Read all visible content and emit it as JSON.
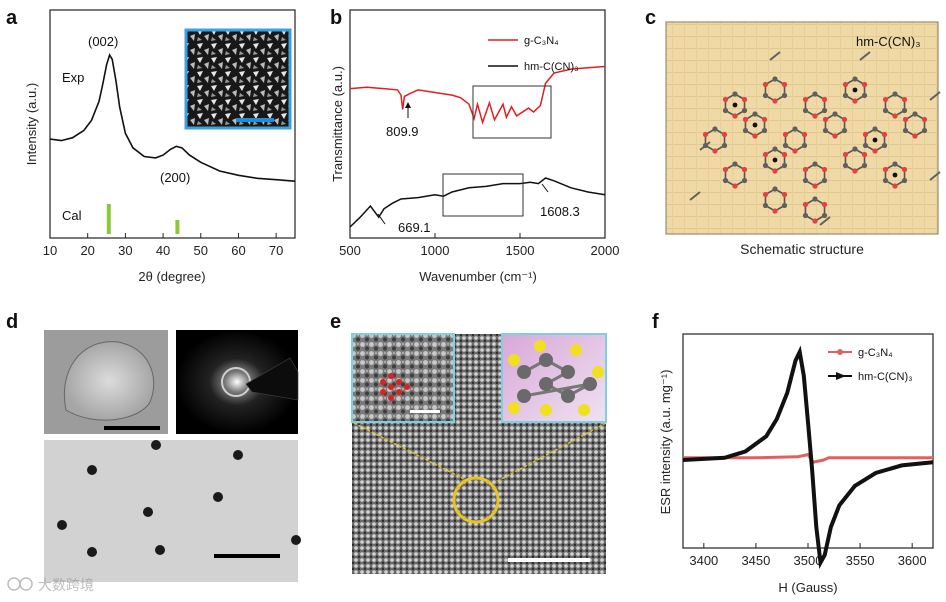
{
  "panels": {
    "a": "a",
    "b": "b",
    "c": "c",
    "d": "d",
    "e": "e",
    "f": "f"
  },
  "chart_data": [
    {
      "id": "a",
      "type": "line",
      "xlabel": "2θ (degree)",
      "ylabel": "Intensity (a.u.)",
      "xlim": [
        10,
        75
      ],
      "x_ticks": [
        "10",
        "20",
        "30",
        "40",
        "50",
        "60",
        "70"
      ],
      "series": [
        {
          "name": "Exp",
          "x": [
            10,
            13,
            16,
            19,
            21,
            23,
            24,
            25,
            25.8,
            26.5,
            27.5,
            28.5,
            30,
            32,
            35,
            38,
            40,
            42,
            43.5,
            45,
            47,
            50,
            55,
            60,
            65,
            70,
            75
          ],
          "y": [
            0.42,
            0.41,
            0.43,
            0.48,
            0.55,
            0.68,
            0.8,
            0.93,
            1.0,
            0.97,
            0.82,
            0.64,
            0.46,
            0.36,
            0.3,
            0.29,
            0.31,
            0.35,
            0.37,
            0.36,
            0.31,
            0.26,
            0.2,
            0.17,
            0.15,
            0.14,
            0.13
          ]
        }
      ],
      "reference": {
        "name": "Cal",
        "positions": [
          25.6,
          43.8
        ]
      },
      "annotations": [
        "(002)",
        "(200)"
      ],
      "labels": {
        "exp": "Exp",
        "cal": "Cal"
      }
    },
    {
      "id": "b",
      "type": "line",
      "xlabel": "Wavenumber (cm⁻¹)",
      "ylabel": "Transmittance (a.u.)",
      "xlim": [
        500,
        2000
      ],
      "x_ticks": [
        "500",
        "1000",
        "1500",
        "2000"
      ],
      "series": [
        {
          "name": "g-C₃N₄",
          "color": "#e02020",
          "x": [
            500,
            600,
            700,
            780,
            800,
            810,
            820,
            850,
            900,
            1000,
            1100,
            1150,
            1200,
            1230,
            1250,
            1280,
            1320,
            1350,
            1400,
            1420,
            1450,
            1480,
            1550,
            1580,
            1620,
            1650,
            1700,
            1800,
            1900,
            2000
          ],
          "y": [
            0.78,
            0.79,
            0.78,
            0.77,
            0.73,
            0.62,
            0.72,
            0.74,
            0.77,
            0.75,
            0.73,
            0.71,
            0.66,
            0.55,
            0.66,
            0.52,
            0.67,
            0.54,
            0.66,
            0.56,
            0.64,
            0.57,
            0.63,
            0.6,
            0.65,
            0.82,
            0.9,
            0.93,
            0.94,
            0.95
          ]
        },
        {
          "name": "hm-C(CN)₃",
          "color": "#111111",
          "x": [
            500,
            560,
            620,
            669,
            700,
            750,
            800,
            900,
            1000,
            1050,
            1100,
            1200,
            1300,
            1400,
            1500,
            1560,
            1608,
            1650,
            1700,
            1800,
            1900,
            2000
          ],
          "y": [
            0.05,
            0.12,
            0.2,
            0.12,
            0.18,
            0.22,
            0.25,
            0.26,
            0.28,
            0.27,
            0.3,
            0.33,
            0.34,
            0.36,
            0.36,
            0.37,
            0.36,
            0.4,
            0.38,
            0.33,
            0.3,
            0.28
          ]
        }
      ],
      "annotations": [
        "809.9",
        "669.1",
        "1608.3"
      ]
    },
    {
      "id": "f",
      "type": "line",
      "xlabel": "H (Gauss)",
      "ylabel": "ESR intensity (a.u. mg⁻¹)",
      "xlim": [
        3380,
        3620
      ],
      "x_ticks": [
        "3400",
        "3450",
        "3500",
        "3550",
        "3600"
      ],
      "series": [
        {
          "name": "g-C₃N₄",
          "color": "#e06060",
          "x": [
            3380,
            3450,
            3490,
            3500,
            3505,
            3515,
            3520,
            3560,
            3620
          ],
          "y": [
            0.02,
            0.02,
            0.03,
            0.05,
            -0.02,
            0.0,
            0.02,
            0.02,
            0.02
          ]
        },
        {
          "name": "hm-C(CN)₃",
          "color": "#111111",
          "x": [
            3380,
            3420,
            3440,
            3460,
            3470,
            3480,
            3488,
            3492,
            3496,
            3500,
            3504,
            3508,
            3512,
            3516,
            3522,
            3530,
            3545,
            3565,
            3590,
            3620
          ],
          "y": [
            0.0,
            0.02,
            0.08,
            0.22,
            0.38,
            0.62,
            0.92,
            1.0,
            0.78,
            0.35,
            -0.1,
            -0.62,
            -0.95,
            -0.88,
            -0.62,
            -0.42,
            -0.24,
            -0.12,
            -0.05,
            -0.02
          ]
        }
      ]
    }
  ],
  "structure": {
    "title": "hm-C(CN)₃",
    "caption": "Schematic structure"
  },
  "watermark": {
    "text": "大数跨境"
  }
}
